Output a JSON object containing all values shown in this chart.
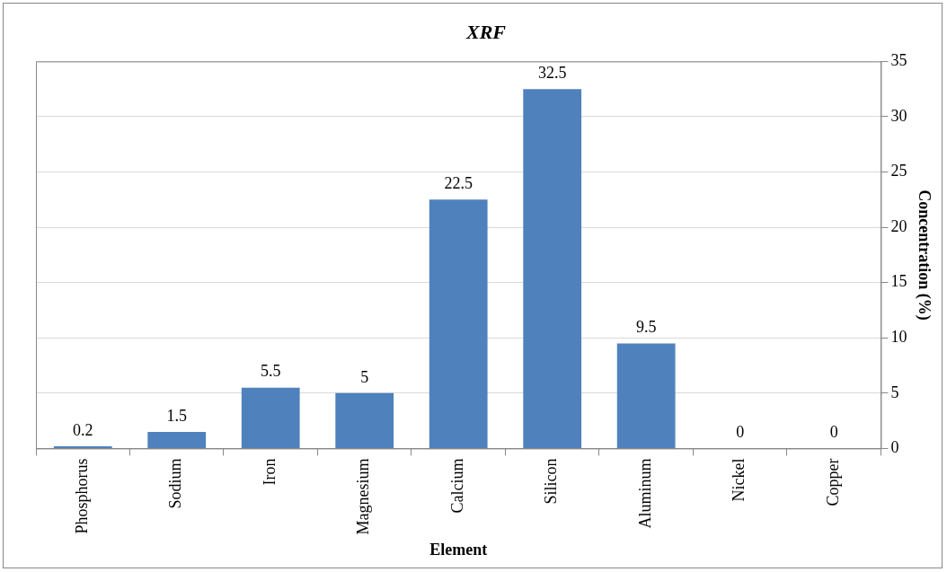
{
  "chart_data": {
    "type": "bar",
    "title": "XRF",
    "xlabel": "Element",
    "ylabel": "Concentration (%)",
    "categories": [
      "Phosphorus",
      "Sodium",
      "Iron",
      "Magnesium",
      "Calcium",
      "Silicon",
      "Aluminum",
      "Nickel",
      "Copper"
    ],
    "values": [
      0.2,
      1.5,
      5.5,
      5,
      22.5,
      32.5,
      9.5,
      0,
      0
    ],
    "color": "#4f81bd",
    "ylim": [
      0,
      35
    ],
    "yticks": [
      0,
      5,
      10,
      15,
      20,
      25,
      30,
      35
    ],
    "grid": "y",
    "legend": false,
    "data_labels": true
  }
}
